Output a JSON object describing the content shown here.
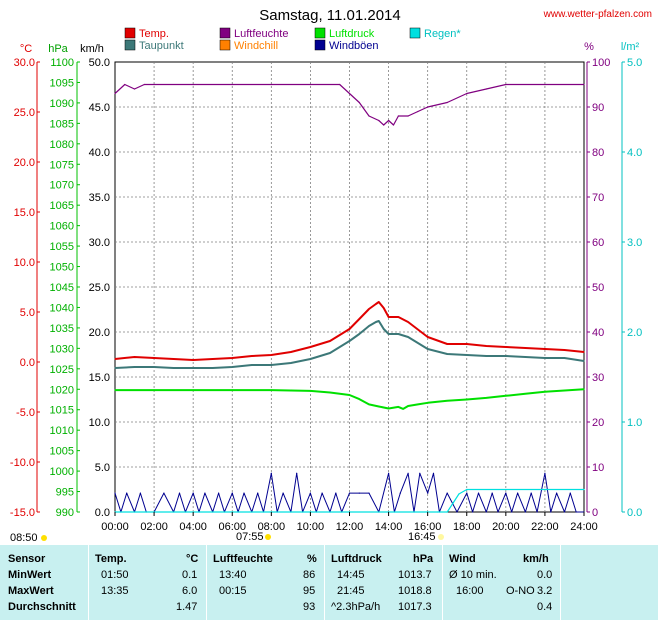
{
  "header": {
    "title": "Samstag, 11.01.2014",
    "site": "www.wetter-pfalzen.com"
  },
  "legend": [
    {
      "label": "Temp.",
      "color": "#e00000"
    },
    {
      "label": "Taupunkt",
      "color": "#3c7878"
    },
    {
      "label": "Luftfeuchte",
      "color": "#800080"
    },
    {
      "label": "Windchill",
      "color": "#ff8000"
    },
    {
      "label": "Luftdruck",
      "color": "#00e000"
    },
    {
      "label": "Windböen",
      "color": "#000090"
    },
    {
      "label": "Regen*",
      "color": "#00e0e0"
    }
  ],
  "axes": {
    "temp": {
      "unit": "°C",
      "ticks": [
        "30.0",
        "25.0",
        "20.0",
        "15.0",
        "10.0",
        "5.0",
        "0.0",
        "-5.0",
        "-10.0",
        "-15.0"
      ],
      "color": "#e00000"
    },
    "pressure": {
      "unit": "hPa",
      "ticks": [
        "1100",
        "1095",
        "1090",
        "1085",
        "1080",
        "1075",
        "1070",
        "1065",
        "1060",
        "1055",
        "1050",
        "1045",
        "1040",
        "1035",
        "1030",
        "1025",
        "1020",
        "1015",
        "1010",
        "1005",
        "1000",
        "995",
        "990"
      ],
      "color": "#00c000"
    },
    "wind": {
      "unit": "km/h",
      "ticks": [
        "50.0",
        "45.0",
        "40.0",
        "35.0",
        "30.0",
        "25.0",
        "20.0",
        "15.0",
        "10.0",
        "5.0",
        "0.0"
      ],
      "color": "#000000"
    },
    "humidity": {
      "unit": "%",
      "ticks": [
        "100",
        "90",
        "80",
        "70",
        "60",
        "50",
        "40",
        "30",
        "20",
        "10",
        "0"
      ],
      "color": "#800080"
    },
    "rain": {
      "unit": "l/m²",
      "ticks": [
        "5.0",
        "4.0",
        "3.0",
        "2.0",
        "1.0",
        "0.0"
      ],
      "color": "#00c0c0"
    },
    "time": {
      "ticks": [
        "00:00",
        "02:00",
        "04:00",
        "06:00",
        "08:00",
        "10:00",
        "12:00",
        "14:00",
        "16:00",
        "18:00",
        "20:00",
        "22:00",
        "24:00"
      ]
    }
  },
  "sun": {
    "sunrise": "08:50",
    "noon": "07:55",
    "sunset": "16:45"
  },
  "chart_data": {
    "type": "line",
    "title": "Samstag, 11.01.2014",
    "x_range": [
      "00:00",
      "24:00"
    ],
    "ylim_temp": [
      -15,
      30
    ],
    "ylim_pressure": [
      990,
      1100
    ],
    "ylim_wind": [
      0,
      50
    ],
    "ylim_humidity": [
      0,
      100
    ],
    "ylim_rain": [
      0,
      5
    ],
    "grid": true,
    "series": [
      {
        "name": "Temp.",
        "axis": "temp",
        "color": "#e00000",
        "x": [
          0,
          1,
          2,
          3,
          4,
          5,
          6,
          7,
          8,
          9,
          10,
          11,
          12,
          12.5,
          13,
          13.35,
          13.5,
          13.75,
          14,
          14.5,
          15,
          16,
          17,
          18,
          19,
          20,
          21,
          22,
          23,
          24
        ],
        "values": [
          0.3,
          0.5,
          0.4,
          0.3,
          0.2,
          0.3,
          0.4,
          0.6,
          0.7,
          1.0,
          1.5,
          2.1,
          3.3,
          4.3,
          5.3,
          5.8,
          6.0,
          5.4,
          4.5,
          4.5,
          4.0,
          2.5,
          1.8,
          1.8,
          1.6,
          1.5,
          1.4,
          1.3,
          1.2,
          1.0
        ]
      },
      {
        "name": "Taupunkt",
        "axis": "temp",
        "color": "#3c7878",
        "x": [
          0,
          1,
          2,
          3,
          4,
          5,
          6,
          7,
          8,
          9,
          10,
          11,
          12,
          12.5,
          13,
          13.35,
          13.5,
          13.75,
          14,
          14.5,
          15,
          16,
          17,
          18,
          19,
          20,
          21,
          22,
          23,
          24
        ],
        "values": [
          -0.6,
          -0.5,
          -0.5,
          -0.6,
          -0.6,
          -0.6,
          -0.5,
          -0.3,
          -0.3,
          -0.1,
          0.3,
          0.9,
          2.1,
          2.8,
          3.6,
          4.0,
          4.1,
          3.3,
          2.8,
          2.8,
          2.5,
          1.3,
          0.8,
          0.7,
          0.6,
          0.6,
          0.5,
          0.4,
          0.4,
          0.1
        ]
      },
      {
        "name": "Luftfeuchte",
        "axis": "humidity",
        "color": "#800080",
        "x": [
          0,
          0.5,
          1,
          1.5,
          2,
          4,
          6,
          8,
          10,
          11.5,
          12,
          12.5,
          13,
          13.5,
          13.75,
          14,
          14.25,
          14.5,
          15,
          15.5,
          16,
          17,
          18,
          19,
          20,
          22,
          24
        ],
        "values": [
          93,
          95,
          94,
          95,
          95,
          95,
          95,
          95,
          95,
          95,
          93,
          91,
          88,
          87,
          86,
          87,
          86,
          88,
          88,
          89,
          90,
          91,
          93,
          94,
          95,
          95,
          95
        ]
      },
      {
        "name": "Luftdruck",
        "axis": "pressure",
        "color": "#00e000",
        "x": [
          0,
          2,
          4,
          6,
          8,
          10,
          11,
          12,
          12.5,
          13,
          13.5,
          14,
          14.5,
          14.75,
          15,
          15.5,
          16,
          17,
          18,
          19,
          20,
          21,
          22,
          23,
          24
        ],
        "values": [
          1019.8,
          1019.8,
          1019.8,
          1019.8,
          1019.8,
          1019.6,
          1019.2,
          1018.6,
          1017.6,
          1016.3,
          1015.8,
          1015.3,
          1015.7,
          1015.2,
          1015.9,
          1016.3,
          1016.7,
          1017.2,
          1017.5,
          1017.9,
          1018.4,
          1018.9,
          1019.4,
          1019.7,
          1020.0
        ]
      },
      {
        "name": "Windböen",
        "axis": "wind",
        "color": "#000090",
        "x": [
          0,
          0.3,
          0.6,
          1,
          1.3,
          1.6,
          2,
          2.5,
          3,
          3.3,
          3.6,
          4,
          4.3,
          4.6,
          5,
          5.3,
          5.6,
          6,
          6.3,
          6.6,
          7,
          7.3,
          7.6,
          8,
          8.3,
          8.6,
          9,
          9.3,
          9.6,
          10,
          10.3,
          10.6,
          11,
          11.3,
          11.6,
          12,
          12.5,
          13,
          13.5,
          14,
          14.3,
          14.6,
          15,
          15.3,
          15.6,
          16,
          16.3,
          16.6,
          17,
          17.5,
          18,
          18.3,
          18.6,
          19,
          19.3,
          19.6,
          20,
          20.3,
          20.6,
          21,
          21.3,
          21.6,
          22,
          22.3,
          22.6,
          23,
          23.3,
          23.6,
          24
        ],
        "values": [
          2.1,
          0,
          2.1,
          0,
          2.1,
          0,
          0,
          2.1,
          0,
          2.1,
          0,
          2.1,
          0,
          2.1,
          0,
          2.1,
          0,
          2.1,
          0,
          2.1,
          0,
          2.1,
          0,
          4.3,
          0,
          2.1,
          0,
          4.3,
          0,
          2.1,
          0,
          2.1,
          0,
          2.1,
          0,
          2.1,
          2.1,
          2.1,
          0,
          4.3,
          0,
          2.1,
          4.3,
          0,
          4.3,
          2.1,
          4.3,
          0,
          2.1,
          0,
          2.1,
          0,
          2.1,
          0,
          2.1,
          0,
          2.1,
          0,
          2.1,
          0,
          2.1,
          0,
          4.3,
          0,
          2.1,
          0,
          2.1,
          0,
          0
        ]
      },
      {
        "name": "Regen*",
        "axis": "rain",
        "color": "#00e0e0",
        "x": [
          0,
          16.5,
          17,
          17.3,
          17.6,
          18,
          24
        ],
        "values": [
          0,
          0,
          0,
          0.1,
          0.2,
          0.25,
          0.25
        ]
      }
    ]
  },
  "stats": {
    "headers": {
      "sensor": "Sensor",
      "temp": "Temp.",
      "temp_unit": "°C",
      "hum": "Luftfeuchte",
      "hum_unit": "%",
      "press": "Luftdruck",
      "press_unit": "hPa",
      "wind": "Wind",
      "wind_unit": "km/h"
    },
    "rows": [
      {
        "label": "MinWert",
        "t_time": "01:50",
        "t_val": "0.1",
        "h_time": "13:40",
        "h_val": "86",
        "p_time": "14:45",
        "p_val": "1013.7",
        "w_label": "Ø 10 min.",
        "w_val": "0.0"
      },
      {
        "label": "MaxWert",
        "t_time": "13:35",
        "t_val": "6.0",
        "h_time": "00:15",
        "h_val": "95",
        "p_time": "21:45",
        "p_val": "1018.8",
        "w_label": "16:00",
        "w_dir": "O-NO",
        "w_val": "3.2"
      },
      {
        "label": "Durchschnitt",
        "t_time": "",
        "t_val": "1.47",
        "h_time": "",
        "h_val": "93",
        "p_time": "^2.3hPa/h",
        "p_val": "1017.3",
        "w_label": "",
        "w_val": "0.4"
      }
    ]
  }
}
